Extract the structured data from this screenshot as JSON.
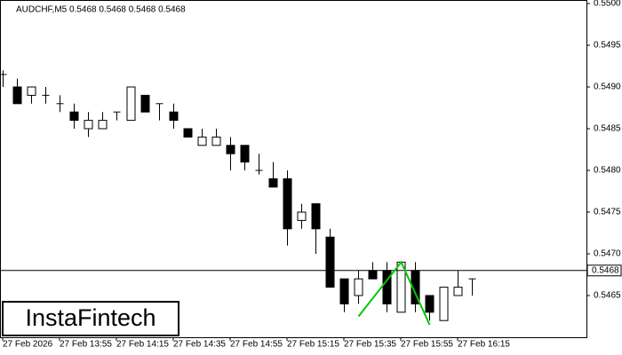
{
  "chart_data": {
    "type": "candlestick",
    "header": "AUDCHF,M5  0.5468 0.5468 0.5468 0.5468",
    "watermark": "InstaFintech",
    "categories": [
      "27 Feb 2026",
      null,
      null,
      null,
      "27 Feb 13:55",
      null,
      null,
      null,
      "27 Feb 14:15",
      null,
      null,
      null,
      "27 Feb 14:35",
      null,
      null,
      null,
      "27 Feb 14:55",
      null,
      null,
      null,
      "27 Feb 15:15",
      null,
      null,
      null,
      "27 Feb 15:35",
      null,
      null,
      null,
      "27 Feb 15:55",
      null,
      null,
      null,
      "27 Feb 16:15",
      null
    ],
    "open": [
      0.54915,
      0.549,
      0.5489,
      0.5489,
      0.5488,
      0.5487,
      0.5485,
      0.5485,
      0.5487,
      0.5486,
      0.5489,
      0.5488,
      0.5487,
      0.5485,
      0.5483,
      0.5483,
      0.5483,
      0.5483,
      0.548,
      0.5479,
      0.5479,
      0.5474,
      0.5476,
      0.5472,
      0.5467,
      0.5465,
      0.5468,
      0.5468,
      0.5463,
      0.5468,
      0.5465,
      0.5462,
      0.5465,
      0.5467
    ],
    "high": [
      0.5492,
      0.5491,
      0.549,
      0.549,
      0.5489,
      0.5488,
      0.5487,
      0.5487,
      0.5487,
      0.549,
      0.5489,
      0.5488,
      0.5488,
      0.5485,
      0.5485,
      0.5485,
      0.5484,
      0.5483,
      0.5482,
      0.5481,
      0.548,
      0.5476,
      0.5476,
      0.5473,
      0.5467,
      0.5468,
      0.5469,
      0.5469,
      0.5469,
      0.5469,
      0.5465,
      0.5466,
      0.5468,
      0.5467
    ],
    "low": [
      0.549,
      0.5488,
      0.5488,
      0.5488,
      0.5487,
      0.5485,
      0.5484,
      0.5485,
      0.5486,
      0.5486,
      0.5487,
      0.5486,
      0.5485,
      0.5484,
      0.5483,
      0.5483,
      0.548,
      0.548,
      0.54795,
      0.5478,
      0.5471,
      0.5473,
      0.547,
      0.5466,
      0.5463,
      0.5464,
      0.5467,
      0.5463,
      0.5463,
      0.5463,
      0.5462,
      0.5462,
      0.5465,
      0.5465
    ],
    "close": [
      0.54915,
      0.5488,
      0.549,
      0.5489,
      0.5488,
      0.5486,
      0.5486,
      0.5486,
      0.5487,
      0.549,
      0.5487,
      0.5488,
      0.5486,
      0.5484,
      0.5484,
      0.5484,
      0.5482,
      0.5481,
      0.548,
      0.5478,
      0.5473,
      0.5475,
      0.5473,
      0.5466,
      0.5464,
      0.5467,
      0.5467,
      0.5464,
      0.5469,
      0.5464,
      0.5463,
      0.5466,
      0.5466,
      0.5467
    ],
    "up_color": "#ffffff",
    "down_color": "#000000",
    "last_price": 0.5468,
    "pattern": {
      "color": "#00c800",
      "x": [
        25,
        28,
        30
      ],
      "values": [
        0.54625,
        0.5469,
        0.54615
      ]
    },
    "ylim": [
      0.546,
      0.55
    ],
    "yticks": [
      0.5465,
      {
        "value": 0.547,
        "label": "0.5470"
      },
      0.5475,
      {
        "value": 0.548,
        "label": "0.5480"
      },
      0.5485,
      {
        "value": 0.549,
        "label": "0.5490"
      },
      0.5495,
      {
        "value": 0.55,
        "label": "0.5500"
      }
    ]
  }
}
